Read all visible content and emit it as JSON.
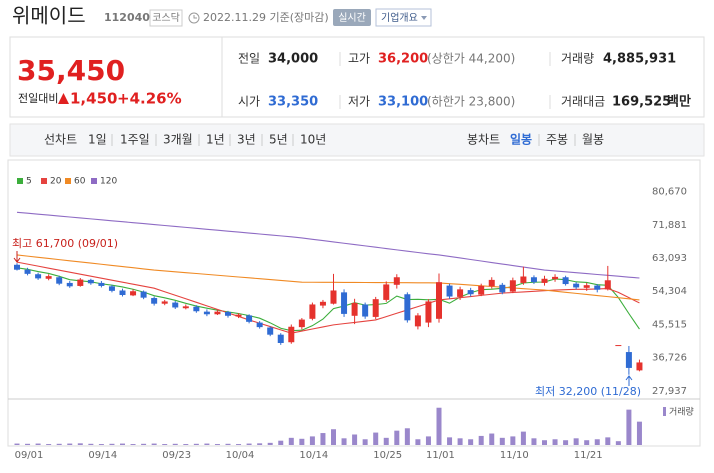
{
  "header": {
    "name": "위메이드",
    "code": "112040",
    "market": "코스닥",
    "date": "2022.11.29 기준(장마감)",
    "realtime": "실시간",
    "company_info": "기업개요"
  },
  "quote": {
    "price": "35,450",
    "change_label": "전일대비",
    "change": "1,450",
    "change_rate": "+4.26%",
    "fields": [
      {
        "label": "전일",
        "value": "34,000"
      },
      {
        "label": "고가",
        "value": "36,200",
        "note": "(상한가 44,200)"
      },
      {
        "label": "거래량",
        "value": "4,885,931"
      },
      {
        "label": "시가",
        "value": "33,350"
      },
      {
        "label": "저가",
        "value": "33,100",
        "note": "(하한가 23,800)"
      },
      {
        "label": "거래대금",
        "value": "169,525",
        "unit": "백만"
      }
    ]
  },
  "tabs": {
    "line_chart": "선차트",
    "line_periods": [
      "1일",
      "1주일",
      "3개월",
      "1년",
      "3년",
      "5년",
      "10년"
    ],
    "candle_chart": "봉차트",
    "candle_periods": [
      "일봉",
      "주봉",
      "월봉"
    ]
  },
  "annotations": {
    "high": "최고 61,700 (09/01)",
    "low": "최저 32,200 (11/28)"
  },
  "chart_data": {
    "type": "candlestick",
    "categories": [
      "09/01",
      null,
      null,
      null,
      null,
      null,
      null,
      "09/14",
      null,
      null,
      null,
      null,
      null,
      null,
      "09/23",
      null,
      null,
      null,
      null,
      null,
      "10/04",
      null,
      null,
      null,
      null,
      null,
      null,
      "10/14",
      null,
      null,
      null,
      null,
      null,
      null,
      "10/25",
      null,
      null,
      null,
      null,
      "11/01",
      null,
      null,
      null,
      null,
      null,
      null,
      "11/10",
      null,
      null,
      null,
      null,
      null,
      null,
      "11/21",
      null,
      null,
      null,
      null,
      null,
      null
    ],
    "open": [
      61300,
      60000,
      58800,
      57600,
      58000,
      56500,
      55700,
      57300,
      56500,
      55600,
      54500,
      53200,
      54200,
      52500,
      51000,
      51300,
      49800,
      50200,
      48900,
      48200,
      48800,
      47600,
      47900,
      46000,
      44700,
      42800,
      40800,
      44800,
      47000,
      50500,
      51000,
      54000,
      47800,
      50800,
      47500,
      52000,
      56000,
      53500,
      45000,
      46000,
      47000,
      55800,
      52800,
      54600,
      53400,
      55600,
      56000,
      54200,
      56500,
      58000,
      56500,
      57500,
      58000,
      56300,
      55200,
      55800,
      54800,
      40050,
      38200,
      33350
    ],
    "high": [
      61700,
      60500,
      59200,
      58800,
      58400,
      57000,
      57800,
      57600,
      57000,
      56000,
      55000,
      54800,
      54500,
      52900,
      52000,
      51700,
      50800,
      50600,
      49500,
      49300,
      49100,
      48500,
      48200,
      46400,
      45000,
      43200,
      45500,
      47200,
      51300,
      52000,
      58900,
      54800,
      52300,
      51300,
      52800,
      56900,
      58800,
      54000,
      48500,
      52200,
      59000,
      56300,
      55500,
      55200,
      56300,
      58000,
      56500,
      57900,
      60800,
      58500,
      58400,
      58800,
      58400,
      56700,
      56500,
      56200,
      61000,
      40050,
      39800,
      36200
    ],
    "low": [
      59800,
      58500,
      57300,
      57200,
      55900,
      55200,
      55500,
      56000,
      55300,
      54000,
      52900,
      53000,
      52200,
      50500,
      50600,
      49600,
      49500,
      48600,
      47700,
      48000,
      47300,
      47200,
      45800,
      44400,
      42400,
      40100,
      40400,
      44200,
      46600,
      49800,
      50800,
      47500,
      45600,
      47000,
      46900,
      51500,
      55000,
      46000,
      44200,
      44800,
      46000,
      52300,
      52000,
      52900,
      53000,
      55000,
      53500,
      53800,
      56000,
      56200,
      55800,
      56800,
      55800,
      54800,
      54400,
      54000,
      54500,
      40050,
      32200,
      33100
    ],
    "close": [
      60000,
      58900,
      57700,
      58300,
      56300,
      55600,
      57400,
      56400,
      55700,
      54400,
      53300,
      54300,
      52600,
      51000,
      51600,
      50000,
      50300,
      49000,
      48200,
      48900,
      47800,
      48100,
      46200,
      44800,
      42800,
      40600,
      44900,
      46800,
      50800,
      51500,
      54500,
      48300,
      51200,
      47600,
      52200,
      56100,
      58000,
      46600,
      47900,
      51600,
      56700,
      52900,
      54800,
      53500,
      55700,
      57300,
      54000,
      57200,
      58200,
      56700,
      57600,
      58100,
      56200,
      55300,
      55900,
      54700,
      57200,
      40050,
      34000,
      35450
    ],
    "volume": [
      300000,
      250000,
      300000,
      200000,
      250000,
      300000,
      350000,
      250000,
      200000,
      250000,
      300000,
      200000,
      250000,
      300000,
      200000,
      250000,
      200000,
      250000,
      300000,
      200000,
      250000,
      200000,
      300000,
      350000,
      450000,
      900000,
      1500000,
      1300000,
      1800000,
      2500000,
      3300000,
      1400000,
      2200000,
      1200000,
      2600000,
      1500000,
      3000000,
      3500000,
      1200000,
      1800000,
      7800000,
      1600000,
      1400000,
      1200000,
      1900000,
      2400000,
      1500000,
      1800000,
      2800000,
      1400000,
      1000000,
      1200000,
      1000000,
      1400000,
      1000000,
      1200000,
      1600000,
      800000,
      7400000,
      4885931
    ],
    "volume_label": "거래량",
    "volume_color": "#9a87cb",
    "volume_ylim": [
      0,
      9000000
    ],
    "up_color": "#e5322d",
    "down_color": "#2f6bd3",
    "series": [
      {
        "name": "5",
        "color": "#3cae3c",
        "values": [
          60500,
          60100,
          59500,
          59000,
          58240,
          57360,
          57060,
          56800,
          56280,
          55900,
          55440,
          54820,
          54060,
          53120,
          52560,
          51900,
          51100,
          50380,
          49820,
          49280,
          48840,
          48400,
          47840,
          47160,
          45940,
          44500,
          43860,
          43980,
          45180,
          46920,
          49700,
          50380,
          51260,
          50620,
          50760,
          51080,
          53020,
          52100,
          52160,
          52040,
          52160,
          51140,
          52780,
          53900,
          54720,
          54840,
          55060,
          55540,
          56480,
          56680,
          56740,
          57560,
          57360,
          56780,
          56620,
          56040,
          55860,
          52630,
          48370,
          44280
        ]
      },
      {
        "name": "20",
        "color": "#e5433f",
        "values": [
          62000,
          61470,
          60940,
          60410,
          59880,
          59350,
          58820,
          58280,
          57750,
          57220,
          56690,
          56160,
          55630,
          55100,
          54170,
          53230,
          52300,
          51370,
          50430,
          49500,
          48570,
          47630,
          46700,
          45830,
          44950,
          44080,
          43200,
          43750,
          44300,
          44850,
          45400,
          45730,
          46050,
          46380,
          46700,
          47580,
          48470,
          49350,
          50230,
          51120,
          52000,
          52300,
          52600,
          52900,
          53200,
          53500,
          53800,
          53960,
          54120,
          54280,
          54440,
          54600,
          54700,
          54800,
          54800,
          54900,
          55000,
          54000,
          52600,
          51200
        ]
      },
      {
        "name": "60",
        "color": "#f08a24",
        "values": [
          63900,
          63590,
          63280,
          62980,
          62670,
          62360,
          62050,
          61750,
          61440,
          61130,
          60820,
          60520,
          60210,
          59900,
          59670,
          59440,
          59210,
          58990,
          58760,
          58530,
          58300,
          58070,
          57840,
          57610,
          57390,
          57160,
          56930,
          56700,
          56680,
          56670,
          56650,
          56640,
          56620,
          56610,
          56590,
          56580,
          56560,
          56550,
          56530,
          56520,
          56500,
          56310,
          56120,
          55930,
          55740,
          55550,
          55360,
          55170,
          54980,
          54790,
          54600,
          54310,
          54020,
          53730,
          53440,
          53160,
          52870,
          52580,
          52290,
          52000
        ]
      },
      {
        "name": "120",
        "color": "#8e6bc4",
        "values": [
          75200,
          74950,
          74700,
          74450,
          74200,
          73950,
          73700,
          73450,
          73200,
          72950,
          72700,
          72450,
          72200,
          71950,
          71700,
          71450,
          71200,
          70950,
          70700,
          70450,
          70200,
          69950,
          69700,
          69450,
          69200,
          68950,
          68700,
          68400,
          68050,
          67700,
          67350,
          67000,
          66650,
          66300,
          65950,
          65600,
          65250,
          64900,
          64550,
          64200,
          63900,
          63500,
          63100,
          62700,
          62300,
          61900,
          61500,
          61100,
          60700,
          60300,
          59900,
          59670,
          59430,
          59200,
          58970,
          58730,
          58500,
          58270,
          58030,
          57800
        ]
      }
    ],
    "ylim": [
      26040,
      88240
    ],
    "yticks": [
      {
        "value": 27937,
        "label": "27,937"
      },
      {
        "value": 36726,
        "label": "36,726"
      },
      {
        "value": 45515,
        "label": "45,515"
      },
      {
        "value": 54304,
        "label": "54,304"
      },
      {
        "value": 63093,
        "label": "63,093"
      },
      {
        "value": 71881,
        "label": "71,881"
      },
      {
        "value": 80670,
        "label": "80,670"
      }
    ]
  }
}
